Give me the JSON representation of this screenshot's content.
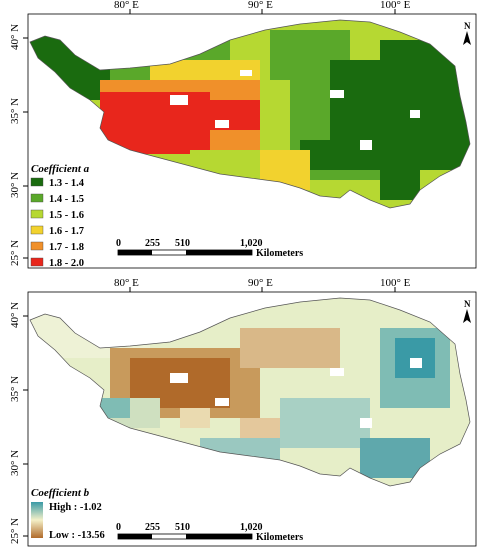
{
  "panel_a": {
    "top_labels": [
      "80° E",
      "90° E",
      "100° E"
    ],
    "left_labels": [
      "40° N",
      "35° N",
      "30° N",
      "25° N"
    ],
    "legend_title": "Coefficient a",
    "legend_items": [
      {
        "label": "1.3 - 1.4",
        "color": "#1a6b0f"
      },
      {
        "label": "1.4 - 1.5",
        "color": "#5aa82a"
      },
      {
        "label": "1.5 - 1.6",
        "color": "#b6d832"
      },
      {
        "label": "1.6 - 1.7",
        "color": "#f2d22e"
      },
      {
        "label": "1.7 - 1.8",
        "color": "#f0902a"
      },
      {
        "label": "1.8 - 2.0",
        "color": "#e8261c"
      }
    ],
    "scale_ticks": [
      "0",
      "255",
      "510",
      "1,020"
    ],
    "scale_unit": "Kilometers",
    "north_label": "N"
  },
  "panel_b": {
    "top_labels": [
      "80° E",
      "90° E",
      "100° E"
    ],
    "left_labels": [
      "40° N",
      "35° N",
      "30° N",
      "25° N"
    ],
    "legend_title": "Coefficient b",
    "legend_high": "High : -1.02",
    "legend_low": "Low : -13.56",
    "ramp_colors": [
      "#3a9aa6",
      "#f4f0c8",
      "#b06a2a"
    ],
    "scale_ticks": [
      "0",
      "255",
      "510",
      "1,020"
    ],
    "scale_unit": "Kilometers",
    "north_label": "N"
  }
}
